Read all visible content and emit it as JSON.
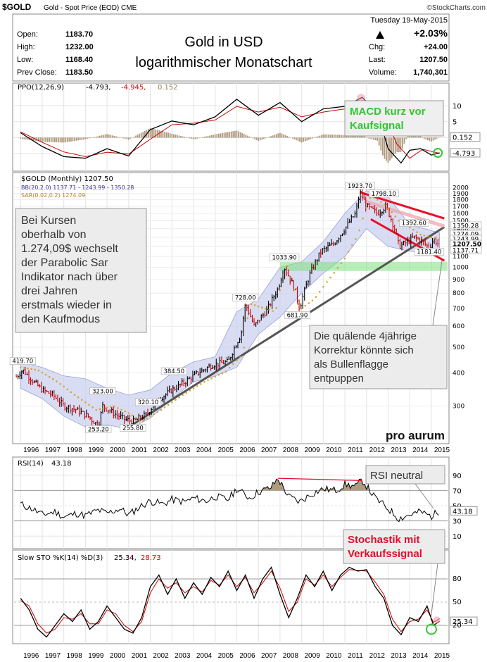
{
  "header": {
    "symbol": "$GOLD",
    "description": "Gold - Spot Price (EOD)  CME",
    "source": "©StockCharts.com",
    "date": "Tuesday  19-May-2015",
    "change_pct": "+2.03%",
    "labels": {
      "open": "Open:",
      "high": "High:",
      "low": "Low:",
      "prev": "Prev Close:",
      "chg": "Chg:",
      "last": "Last:",
      "volume": "Volume:"
    },
    "values": {
      "open": "1183.70",
      "high": "1232.00",
      "low": "1168.40",
      "prev": "1183.50",
      "chg": "+24.00",
      "last": "1207.50",
      "volume": "1,740,301"
    }
  },
  "title": {
    "line1": "Gold in USD",
    "line2": "logarithmischer Monatschart"
  },
  "watermark": "pro aurum",
  "annotations": {
    "macd_note": [
      "MACD kurz vor",
      "Kaufsignal"
    ],
    "sar_note": [
      "Bei Kursen",
      "oberhalb von",
      "1.274,09$ wechselt",
      "der Parabolic Sar",
      "Indikator nach über",
      "drei Jahren",
      "erstmals wieder in",
      "den Kaufmodus"
    ],
    "flag_note": [
      "Die quälende 4jährige",
      "Korrektur könnte sich",
      "als Bullenflagge",
      "entpuppen"
    ],
    "rsi_note": "RSI neutral",
    "sto_note": [
      "Stochastik mit",
      "Verkaufssignal"
    ]
  },
  "colors": {
    "price_up": "#000000",
    "price_down": "#cc0000",
    "bb_fill": "#c9cfee",
    "sar": "#d6a437",
    "trend": "#555555",
    "channel": "#e8102a",
    "support": "#7ee07e",
    "green_note": "#35c435",
    "red_note": "#e0102a",
    "osc_fill": "#b09a80"
  },
  "chart_data": [
    {
      "type": "line",
      "panel": "ppo",
      "legend": [
        "PPO(12,26,9)",
        "-4.793,",
        "-4.945,",
        "0.152"
      ],
      "y_ticks": [
        "10",
        "5",
        "0.152",
        "-4.793"
      ],
      "series": [
        {
          "name": "PPO(12,26,9)",
          "x": [
            1996,
            1997,
            1998,
            1999,
            2000,
            2001,
            2002,
            2003,
            2004,
            2005,
            2006,
            2007,
            2008,
            2009,
            2010,
            2011,
            2011.8,
            2012.5,
            2013,
            2013.6,
            2014,
            2014.5,
            2015,
            2015.38
          ],
          "values": [
            1.5,
            -2.8,
            -6.0,
            -6.5,
            -3.5,
            -5.8,
            2.5,
            5.2,
            4.0,
            6.5,
            12.0,
            7.0,
            11.0,
            5.0,
            9.0,
            9.8,
            12.6,
            8.0,
            -3.5,
            -8.0,
            -4.0,
            -3.5,
            -5.5,
            -4.793
          ]
        },
        {
          "name": "Signal",
          "x": [
            1996,
            1997,
            1998,
            1999,
            2000,
            2001,
            2002,
            2003,
            2004,
            2005,
            2006,
            2007,
            2008,
            2009,
            2010,
            2011,
            2012,
            2012.8,
            2013.4,
            2014,
            2014.6,
            2015.38
          ],
          "values": [
            1.8,
            -1.5,
            -4.5,
            -6.0,
            -4.6,
            -5.2,
            -0.5,
            4.0,
            4.5,
            5.5,
            9.8,
            8.0,
            9.5,
            6.5,
            8.0,
            9.0,
            11.3,
            7.5,
            -2.0,
            -6.5,
            -3.7,
            -4.945
          ]
        }
      ]
    },
    {
      "type": "line",
      "panel": "price",
      "scale": "log",
      "legend": [
        "$GOLD (Monthly) 1207.50",
        "BB(20,2.0) 1137.71 - 1243.99 - 1350.28",
        "SAR(0.02,0.2) 1274.09"
      ],
      "y_ticks": [
        2000,
        1900,
        1800,
        1700,
        1600,
        1500,
        1400,
        1300,
        1200,
        1100,
        1000,
        900,
        800,
        700,
        600,
        500,
        400,
        300
      ],
      "x_ticks": [
        "1996",
        "1997",
        "1998",
        "1999",
        "2000",
        "2001",
        "2002",
        "2003",
        "2004",
        "2005",
        "2006",
        "2007",
        "2008",
        "2009",
        "2010",
        "2011",
        "2012",
        "2013",
        "2014",
        "2015"
      ],
      "price_x": [
        1995.8,
        1996.1,
        1996.6,
        1997.0,
        1997.5,
        1998.0,
        1998.6,
        1999.1,
        1999.6,
        1999.8,
        2000.3,
        2000.8,
        2001.2,
        2001.8,
        2002.4,
        2003.0,
        2003.6,
        2004.2,
        2004.9,
        2005.6,
        2006.2,
        2006.4,
        2006.8,
        2007.4,
        2007.9,
        2008.2,
        2008.7,
        2008.9,
        2009.4,
        2009.9,
        2010.5,
        2011.0,
        2011.5,
        2011.7,
        2012.0,
        2012.5,
        2012.9,
        2013.3,
        2013.5,
        2013.9,
        2014.2,
        2014.6,
        2014.9,
        2015.1,
        2015.38
      ],
      "price_y": [
        387,
        410,
        370,
        345,
        330,
        300,
        290,
        275,
        253,
        300,
        282,
        268,
        262,
        278,
        318,
        345,
        370,
        400,
        430,
        440,
        560,
        728,
        600,
        690,
        830,
        1000,
        820,
        700,
        950,
        1150,
        1230,
        1400,
        1600,
        1923,
        1700,
        1600,
        1700,
        1400,
        1200,
        1250,
        1300,
        1250,
        1181,
        1280,
        1207.5
      ],
      "candles_note": "monthly bars drawn from interpolated path",
      "peak_labels": [
        {
          "text": "419.70",
          "x": 1996.1,
          "y": 419.7
        },
        {
          "text": "323.00",
          "x": 1999.8,
          "y": 323.0
        },
        {
          "text": "253.20",
          "x": 1999.6,
          "y": 253.2
        },
        {
          "text": "255.80",
          "x": 2001.2,
          "y": 255.8
        },
        {
          "text": "320.10",
          "x": 2001.9,
          "y": 320.1
        },
        {
          "text": "384.50",
          "x": 2003.1,
          "y": 384.5
        },
        {
          "text": "728.00",
          "x": 2006.4,
          "y": 728.0
        },
        {
          "text": "681.90",
          "x": 2008.8,
          "y": 681.9
        },
        {
          "text": "1033.90",
          "x": 2008.2,
          "y": 1033.9
        },
        {
          "text": "1923.70",
          "x": 2011.7,
          "y": 1923.7
        },
        {
          "text": "1798.10",
          "x": 2012.8,
          "y": 1798.1
        },
        {
          "text": "1392.60",
          "x": 2014.2,
          "y": 1392.6
        },
        {
          "text": "1181.40",
          "x": 2014.9,
          "y": 1181.4
        }
      ],
      "right_labels": [
        "1350.28",
        "1274.09",
        "1243.99",
        "1207.50",
        "1137.71"
      ],
      "bb_upper_x": [
        1996,
        1997,
        1998,
        1999,
        2000,
        2001,
        2002,
        2003,
        2004,
        2005,
        2006,
        2007,
        2008,
        2009,
        2010,
        2011,
        2012,
        2013,
        2014,
        2015.38
      ],
      "bb_upper_y": [
        440,
        420,
        390,
        380,
        350,
        330,
        345,
        400,
        440,
        460,
        680,
        760,
        1000,
        1050,
        1250,
        1600,
        1950,
        1850,
        1450,
        1350.28
      ],
      "bb_lower_y": [
        350,
        320,
        275,
        250,
        255,
        245,
        270,
        320,
        370,
        390,
        420,
        560,
        650,
        800,
        950,
        1100,
        1400,
        1200,
        1150,
        1137.71
      ],
      "sar_x": [
        1996,
        1996.8,
        1997.6,
        1998.5,
        1999.5,
        2000.3,
        2001.0,
        2001.6,
        2002.5,
        2003.5,
        2004.5,
        2005.5,
        2006.3,
        2006.6,
        2007.3,
        2007.8,
        2008.3,
        2008.9,
        2009.6,
        2010.4,
        2011.0,
        2011.6,
        2012.2,
        2012.8,
        2013.5,
        2014.5,
        2015.38
      ],
      "sar_y": [
        420,
        410,
        375,
        330,
        290,
        300,
        282,
        262,
        290,
        330,
        370,
        405,
        470,
        730,
        700,
        680,
        1030,
        690,
        760,
        930,
        1080,
        1320,
        1860,
        1740,
        1500,
        1330,
        1274.09
      ],
      "trendline": {
        "x": [
          2001.0,
          2015.6
        ],
        "y": [
          250,
          1420
        ]
      },
      "channel_upper": {
        "x": [
          2011.7,
          2015.6
        ],
        "y": [
          1920,
          1530
        ]
      },
      "channel_mid": {
        "x": [
          2011.9,
          2015.6
        ],
        "y": [
          1780,
          1430
        ]
      },
      "channel_lower": {
        "x": [
          2012.2,
          2015.6
        ],
        "y": [
          1520,
          1060
        ]
      },
      "support_band": [
        970,
        1050
      ]
    },
    {
      "type": "line",
      "panel": "rsi",
      "legend": [
        "RSI(14)",
        "43.18"
      ],
      "y_ticks": [
        90,
        70,
        50,
        43.18,
        30,
        10
      ],
      "ylim": [
        0,
        100
      ],
      "series": [
        {
          "name": "RSI(14)",
          "x": [
            1996,
            1996.6,
            1997,
            1997.6,
            1998,
            1998.6,
            1999,
            1999.6,
            2000,
            2000.6,
            2001,
            2001.6,
            2002,
            2002.6,
            2003,
            2003.6,
            2004,
            2004.6,
            2005,
            2005.6,
            2006,
            2006.6,
            2007,
            2007.6,
            2007.9,
            2008.4,
            2008.9,
            2009.5,
            2010,
            2010.6,
            2011,
            2011.5,
            2011.8,
            2012.4,
            2013,
            2013.5,
            2014,
            2014.5,
            2015,
            2015.38
          ],
          "values": [
            52,
            45,
            38,
            42,
            35,
            40,
            37,
            44,
            40,
            46,
            38,
            50,
            56,
            52,
            58,
            55,
            60,
            56,
            62,
            58,
            72,
            60,
            68,
            74,
            86,
            62,
            55,
            66,
            72,
            70,
            78,
            75,
            84,
            60,
            46,
            33,
            38,
            42,
            36,
            43.18
          ]
        }
      ]
    },
    {
      "type": "line",
      "panel": "stochastic",
      "legend": [
        "Slow STO %K(14) %D(3)",
        "25.34,",
        "28.73"
      ],
      "y_ticks": [
        80,
        50,
        25.34,
        20
      ],
      "ylim": [
        0,
        100
      ],
      "series": [
        {
          "name": "%K(14)",
          "x": [
            1996,
            1996.4,
            1996.8,
            1997.2,
            1997.6,
            1998,
            1998.4,
            1998.8,
            1999.2,
            1999.6,
            2000,
            2000.4,
            2000.8,
            2001.2,
            2001.6,
            2002,
            2002.4,
            2002.8,
            2003.2,
            2003.6,
            2004,
            2004.4,
            2004.8,
            2005.2,
            2005.6,
            2006,
            2006.4,
            2006.8,
            2007.2,
            2007.6,
            2008,
            2008.4,
            2008.8,
            2009.2,
            2009.6,
            2010,
            2010.4,
            2010.8,
            2011.2,
            2011.6,
            2012,
            2012.4,
            2012.8,
            2013.2,
            2013.6,
            2014,
            2014.4,
            2014.8,
            2015.1,
            2015.38
          ],
          "values": [
            55,
            40,
            15,
            5,
            20,
            35,
            25,
            40,
            15,
            25,
            45,
            30,
            15,
            10,
            30,
            70,
            85,
            60,
            80,
            55,
            75,
            60,
            82,
            70,
            90,
            65,
            85,
            55,
            80,
            95,
            60,
            30,
            55,
            85,
            70,
            90,
            65,
            85,
            95,
            90,
            92,
            70,
            55,
            20,
            8,
            30,
            25,
            45,
            20,
            25.34
          ]
        },
        {
          "name": "%D(3)",
          "x": [
            1996,
            1996.4,
            1996.8,
            1997.2,
            1997.6,
            1998,
            1998.4,
            1998.8,
            1999.2,
            1999.6,
            2000,
            2000.4,
            2000.8,
            2001.2,
            2001.6,
            2002,
            2002.4,
            2002.8,
            2003.2,
            2003.6,
            2004,
            2004.4,
            2004.8,
            2005.2,
            2005.6,
            2006,
            2006.4,
            2006.8,
            2007.2,
            2007.6,
            2008,
            2008.4,
            2008.8,
            2009.2,
            2009.6,
            2010,
            2010.4,
            2010.8,
            2011.2,
            2011.6,
            2012,
            2012.4,
            2012.8,
            2013.2,
            2013.6,
            2014,
            2014.4,
            2014.8,
            2015.1,
            2015.38
          ],
          "values": [
            52,
            45,
            22,
            10,
            15,
            30,
            28,
            35,
            22,
            22,
            40,
            35,
            20,
            12,
            25,
            62,
            80,
            68,
            75,
            62,
            70,
            63,
            78,
            72,
            85,
            70,
            82,
            62,
            75,
            90,
            68,
            38,
            50,
            80,
            72,
            85,
            70,
            82,
            92,
            91,
            90,
            76,
            60,
            28,
            12,
            25,
            28,
            40,
            24,
            28.73
          ]
        }
      ]
    }
  ]
}
